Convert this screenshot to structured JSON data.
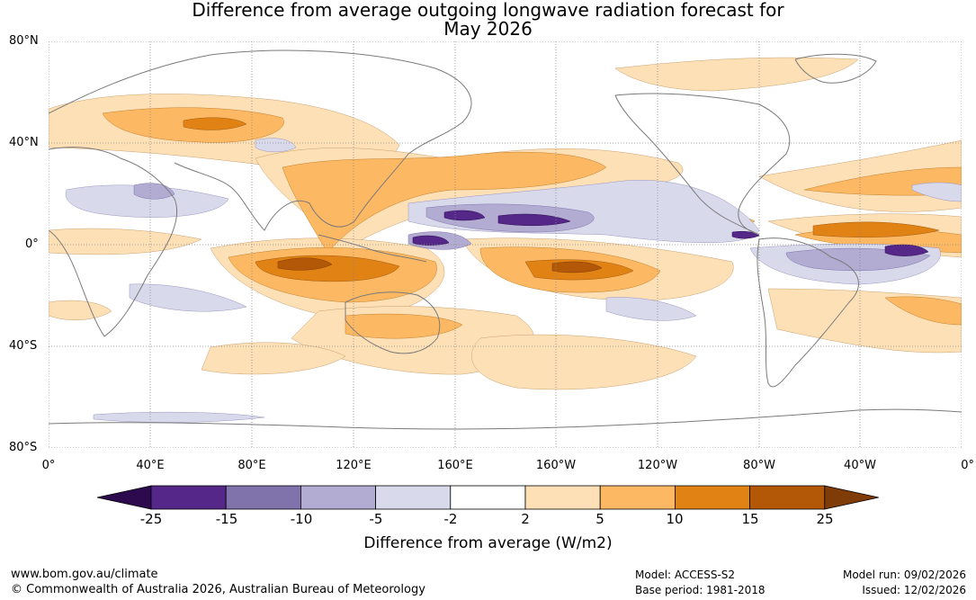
{
  "title": {
    "line1": "Difference from average outgoing longwave radiation forecast for",
    "line2": "May 2026"
  },
  "axes": {
    "lat_labels": [
      "80°N",
      "40°N",
      "0°",
      "40°S",
      "80°S"
    ],
    "lon_labels": [
      "0°",
      "40°E",
      "80°E",
      "120°E",
      "160°E",
      "160°W",
      "120°W",
      "80°W",
      "40°W",
      "0°"
    ]
  },
  "colorbar": {
    "ticks": [
      "-25",
      "-15",
      "-10",
      "-5",
      "-2",
      "2",
      "5",
      "10",
      "15",
      "25"
    ],
    "colors": [
      "#2d0a4e",
      "#542788",
      "#8073ac",
      "#b2abd2",
      "#d8daeb",
      "#ffffff",
      "#fee0b6",
      "#fdb863",
      "#e08214",
      "#b35806",
      "#7f3b08"
    ],
    "label": "Difference from average (W/m2)"
  },
  "footer": {
    "url": "www.bom.gov.au/climate",
    "copyright": "© Commonwealth of Australia 2026, Australian Bureau of Meteorology",
    "model": "Model: ACCESS-S2",
    "base_period": "Base period: 1981-2018",
    "model_run": "Model run: 09/02/2026",
    "issued": "Issued: 12/02/2026"
  }
}
